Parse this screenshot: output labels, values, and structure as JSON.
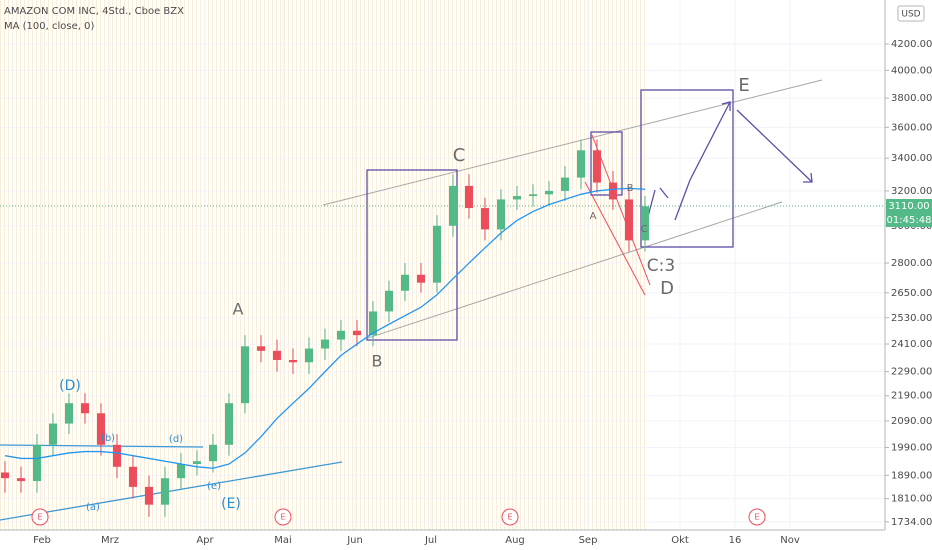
{
  "chart_data": {
    "type": "candlestick",
    "title": "AMAZON COM INC, 4Std., Cboe BZX",
    "indicator": "MA (100, close, 0)",
    "currency": "USD",
    "last_price_label": "3110.00",
    "countdown_label": "01:45:48",
    "log_scale": true,
    "up_color": "#53b987",
    "down_color": "#eb4d5c",
    "open": [
      1900,
      1880,
      1870,
      2000,
      2080,
      2160,
      2120,
      2000,
      1920,
      1850,
      1790,
      1880,
      1930,
      1940,
      2000,
      2160,
      2400,
      2380,
      2340,
      2330,
      2390,
      2430,
      2470,
      2450,
      2560,
      2660,
      2740,
      2700,
      3000,
      3230,
      3100,
      2980,
      3150,
      3170,
      3180,
      3200,
      3280,
      3450,
      3250,
      3150,
      2920
    ],
    "high": [
      1940,
      1920,
      2040,
      2120,
      2200,
      2200,
      2160,
      2040,
      1960,
      1890,
      1920,
      1970,
      1980,
      2040,
      2200,
      2450,
      2450,
      2430,
      2390,
      2440,
      2480,
      2520,
      2520,
      2610,
      2710,
      2800,
      2800,
      3060,
      3300,
      3300,
      3160,
      3210,
      3230,
      3240,
      3260,
      3350,
      3520,
      3520,
      3320,
      3210,
      3170
    ],
    "low": [
      1830,
      1830,
      1830,
      1960,
      2040,
      2080,
      1960,
      1880,
      1810,
      1750,
      1750,
      1840,
      1890,
      1900,
      1960,
      2120,
      2330,
      2290,
      2280,
      2280,
      2340,
      2380,
      2400,
      2400,
      2510,
      2610,
      2650,
      2650,
      2940,
      3040,
      2920,
      2920,
      3090,
      3110,
      3120,
      3140,
      3210,
      3190,
      3090,
      2860,
      2860
    ],
    "close": [
      1880,
      1870,
      2000,
      2080,
      2160,
      2120,
      2000,
      1920,
      1850,
      1790,
      1880,
      1930,
      1940,
      2000,
      2160,
      2400,
      2380,
      2340,
      2330,
      2390,
      2430,
      2470,
      2450,
      2560,
      2660,
      2740,
      2700,
      3000,
      3230,
      3100,
      2980,
      3150,
      3170,
      3180,
      3200,
      3280,
      3450,
      3250,
      3150,
      2920,
      3110
    ],
    "series": [
      {
        "name": "MA (100, close, 0)",
        "color": "#2196f3",
        "values": [
          1960,
          1950,
          1950,
          1960,
          1970,
          1975,
          1975,
          1970,
          1960,
          1950,
          1940,
          1930,
          1920,
          1915,
          1930,
          1970,
          2030,
          2100,
          2160,
          2220,
          2290,
          2360,
          2410,
          2460,
          2500,
          2540,
          2580,
          2640,
          2720,
          2800,
          2880,
          2960,
          3030,
          3080,
          3120,
          3150,
          3180,
          3200,
          3210,
          3215,
          3210
        ]
      }
    ],
    "ylim": [
      1708,
      4557
    ],
    "yticks": [
      {
        "value": 4200,
        "label": "4200.00"
      },
      {
        "value": 4000,
        "label": "4000.00"
      },
      {
        "value": 3800,
        "label": "3800.00"
      },
      {
        "value": 3600,
        "label": "3600.00"
      },
      {
        "value": 3400,
        "label": "3400.00"
      },
      {
        "value": 3200,
        "label": "3200.00"
      },
      {
        "value": 3000,
        "label": "3000.00"
      },
      {
        "value": 2800,
        "label": "2800.00"
      },
      {
        "value": 2650,
        "label": "2650.00"
      },
      {
        "value": 2530,
        "label": "2530.00"
      },
      {
        "value": 2410,
        "label": "2410.00"
      },
      {
        "value": 2290,
        "label": "2290.00"
      },
      {
        "value": 2190,
        "label": "2190.00"
      },
      {
        "value": 2090,
        "label": "2090.00"
      },
      {
        "value": 1990,
        "label": "1990.00"
      },
      {
        "value": 1890,
        "label": "1890.00"
      },
      {
        "value": 1810,
        "label": "1810.00"
      },
      {
        "value": 1734,
        "label": "1734.00"
      }
    ],
    "x_labels": [
      "Feb",
      "Mrz",
      "Apr",
      "Mai",
      "Jun",
      "Jul",
      "Aug",
      "Sep",
      "Okt",
      "16",
      "Nov"
    ],
    "earnings_markers": [
      "E",
      "E",
      "E",
      "E"
    ],
    "annotations": [
      "(D)",
      "(b)",
      "(d)",
      "(a)",
      "(e)",
      "(E)",
      "A",
      "B",
      "C",
      "A",
      "B",
      "C",
      "C:3",
      "D",
      "E"
    ]
  }
}
